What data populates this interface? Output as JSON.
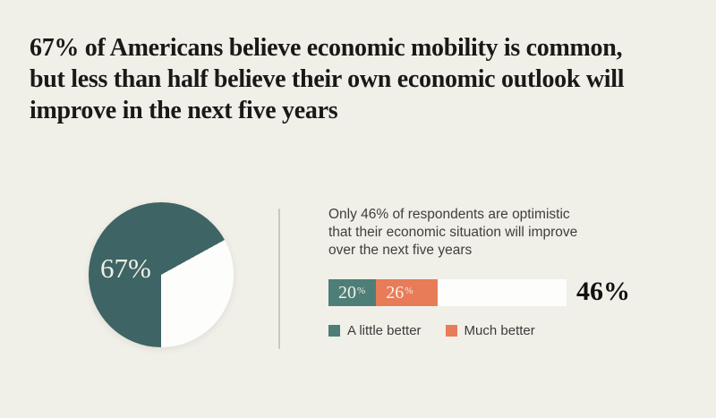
{
  "page": {
    "background": "#f1f0e8"
  },
  "title": {
    "lines": [
      "67% of Americans believe economic mobility is common,",
      "but less than half believe their own economic outlook will",
      "improve in the next five years"
    ],
    "color": "#191919"
  },
  "divider_color": "#c8c8c0",
  "description": {
    "lines": [
      "Only 46% of respondents are optimistic",
      "that their economic situation will improve",
      "over the next five years"
    ],
    "color": "#3e3e3e"
  },
  "chart_data": [
    {
      "type": "pie",
      "start_angle_deg": 180,
      "slices": [
        {
          "label": "67%",
          "value": 67,
          "color": "#3e6465"
        },
        {
          "label": "",
          "value": 33,
          "color": "#fdfdfb"
        }
      ],
      "label_color": "#f2efe6"
    },
    {
      "type": "bar",
      "orientation": "horizontal-stacked",
      "axis_range": [
        0,
        100
      ],
      "series": [
        {
          "name": "A little better",
          "value": 20,
          "value_text": "20",
          "suffix": "%",
          "color": "#4d7e78"
        },
        {
          "name": "Much better",
          "value": 26,
          "value_text": "26",
          "suffix": "%",
          "color": "#e87c58"
        }
      ],
      "remainder_color": "#fdfdfb",
      "total_label": "46%",
      "label_color": "#f4f1e8",
      "legend_position": "bottom"
    }
  ],
  "legend": {
    "items": [
      {
        "label": "A little better",
        "color": "#4d7e78"
      },
      {
        "label": "Much better",
        "color": "#e87c58"
      }
    ],
    "text_color": "#3a3a3a"
  }
}
